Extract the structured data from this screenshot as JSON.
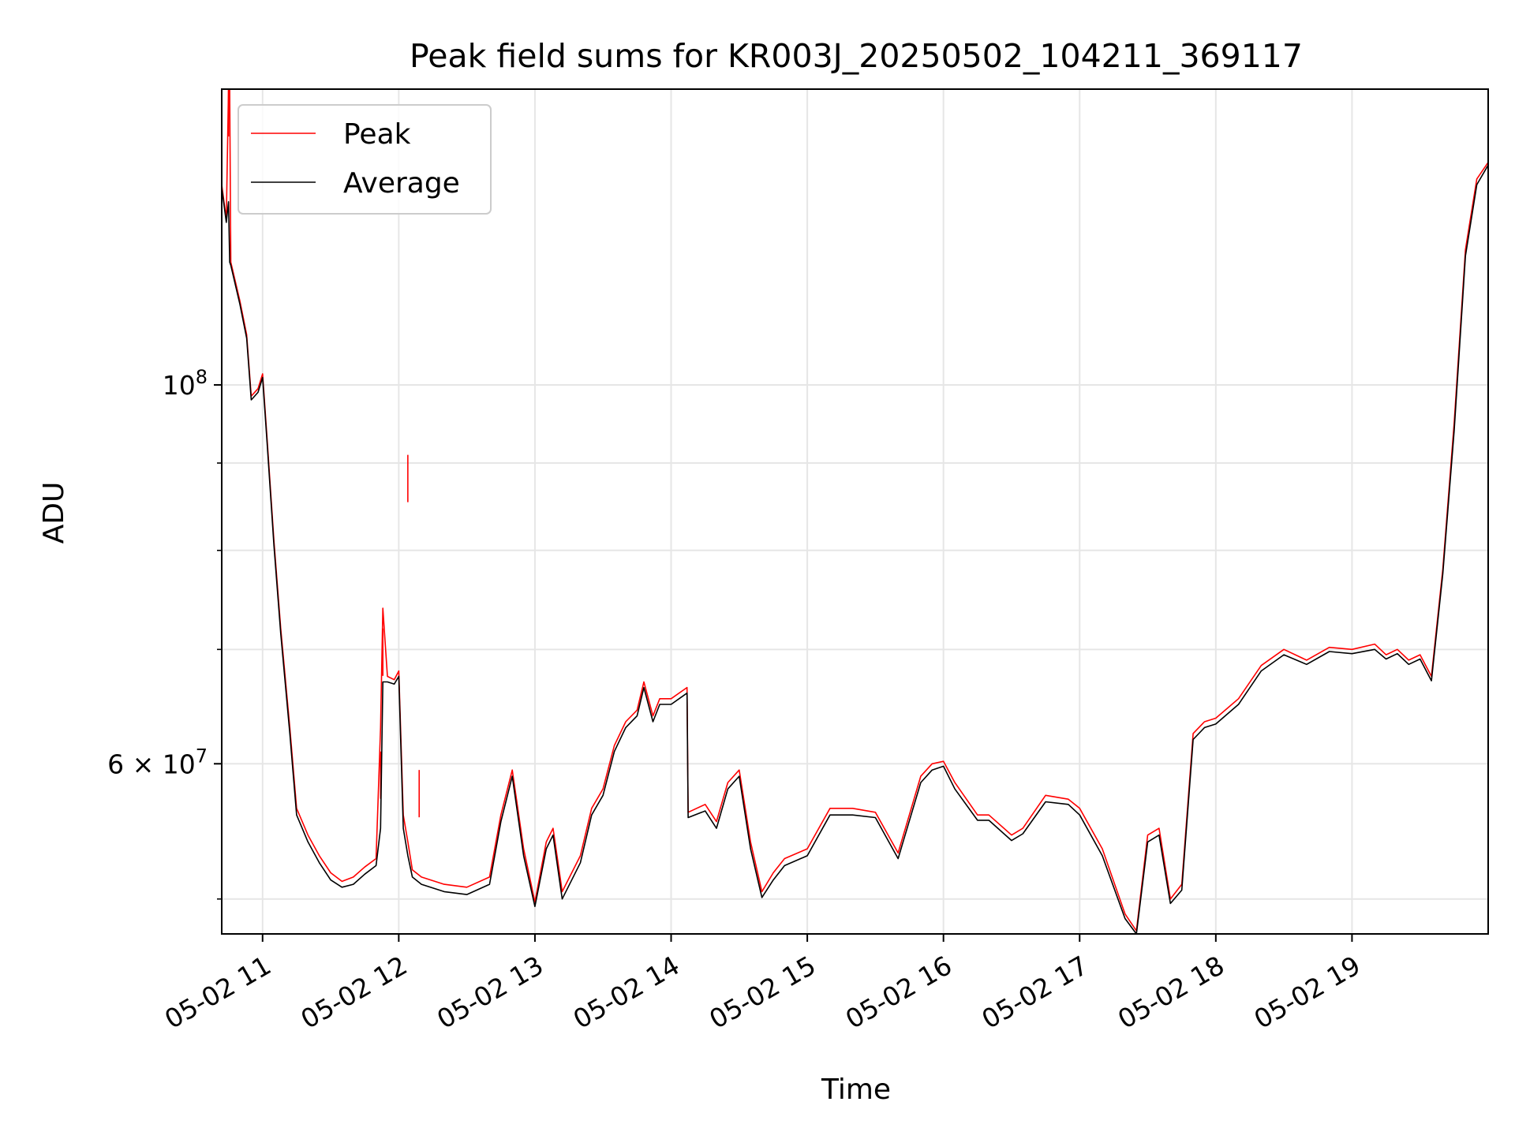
{
  "chart_data": {
    "type": "line",
    "title": "Peak field sums for KR003J_20250502_104211_369117",
    "xlabel": "Time",
    "ylabel": "ADU",
    "yscale": "log",
    "ylim": [
      47700000,
      149000000
    ],
    "xlim": [
      "2025-05-02 10:42",
      "2025-05-02 20:00"
    ],
    "x_ticks": [
      "05-02 11",
      "05-02 12",
      "05-02 13",
      "05-02 14",
      "05-02 15",
      "05-02 16",
      "05-02 17",
      "05-02 18",
      "05-02 19"
    ],
    "x_tick_times": [
      "2025-05-02 11:00",
      "2025-05-02 12:00",
      "2025-05-02 13:00",
      "2025-05-02 14:00",
      "2025-05-02 15:00",
      "2025-05-02 16:00",
      "2025-05-02 17:00",
      "2025-05-02 18:00",
      "2025-05-02 19:00"
    ],
    "y_major_ticks": [
      {
        "value": 100000000,
        "base": "10",
        "exp": "8"
      },
      {
        "value": 60000000,
        "mant": "6",
        "base": "10",
        "exp": "7"
      }
    ],
    "y_minor_ticks": [
      50000000,
      70000000,
      80000000,
      90000000
    ],
    "grid": true,
    "legend_position": "top-left",
    "series": [
      {
        "name": "Peak",
        "color": "#ff0000",
        "x": [
          "2025-05-02 10:42",
          "2025-05-02 10:44",
          "2025-05-02 10:45",
          "2025-05-02 10:45:30",
          "2025-05-02 10:46",
          "2025-05-02 10:50",
          "2025-05-02 10:53",
          "2025-05-02 10:55",
          "2025-05-02 10:58",
          "2025-05-02 11:00",
          "2025-05-02 11:02",
          "2025-05-02 11:05",
          "2025-05-02 11:08",
          "2025-05-02 11:12",
          "2025-05-02 11:15",
          "2025-05-02 11:20",
          "2025-05-02 11:25",
          "2025-05-02 11:30",
          "2025-05-02 11:35",
          "2025-05-02 11:40",
          "2025-05-02 11:45",
          "2025-05-02 11:50",
          "2025-05-02 11:52",
          "2025-05-02 11:53",
          "2025-05-02 11:55",
          "2025-05-02 11:58",
          "2025-05-02 12:00",
          "2025-05-02 12:02",
          "2025-05-02 12:04",
          "2025-05-02 12:06",
          "2025-05-02 12:10",
          "2025-05-02 12:20",
          "2025-05-02 12:30",
          "2025-05-02 12:40",
          "2025-05-02 12:45",
          "2025-05-02 12:50",
          "2025-05-02 12:55",
          "2025-05-02 13:00",
          "2025-05-02 13:05",
          "2025-05-02 13:08",
          "2025-05-02 13:12",
          "2025-05-02 13:20",
          "2025-05-02 13:25",
          "2025-05-02 13:30",
          "2025-05-02 13:35",
          "2025-05-02 13:40",
          "2025-05-02 13:45",
          "2025-05-02 13:48",
          "2025-05-02 13:52",
          "2025-05-02 13:55",
          "2025-05-02 14:00",
          "2025-05-02 14:07",
          "2025-05-02 14:07:30",
          "2025-05-02 14:15",
          "2025-05-02 14:20",
          "2025-05-02 14:25",
          "2025-05-02 14:30",
          "2025-05-02 14:35",
          "2025-05-02 14:40",
          "2025-05-02 14:45",
          "2025-05-02 14:50",
          "2025-05-02 15:00",
          "2025-05-02 15:10",
          "2025-05-02 15:20",
          "2025-05-02 15:30",
          "2025-05-02 15:40",
          "2025-05-02 15:50",
          "2025-05-02 15:55",
          "2025-05-02 16:00",
          "2025-05-02 16:05",
          "2025-05-02 16:15",
          "2025-05-02 16:20",
          "2025-05-02 16:30",
          "2025-05-02 16:35",
          "2025-05-02 16:45",
          "2025-05-02 16:55",
          "2025-05-02 17:00",
          "2025-05-02 17:10",
          "2025-05-02 17:20",
          "2025-05-02 17:25",
          "2025-05-02 17:30",
          "2025-05-02 17:35",
          "2025-05-02 17:40",
          "2025-05-02 17:45",
          "2025-05-02 17:50",
          "2025-05-02 17:55",
          "2025-05-02 18:00",
          "2025-05-02 18:10",
          "2025-05-02 18:20",
          "2025-05-02 18:30",
          "2025-05-02 18:40",
          "2025-05-02 18:50",
          "2025-05-02 19:00",
          "2025-05-02 19:10",
          "2025-05-02 19:15",
          "2025-05-02 19:20",
          "2025-05-02 19:25",
          "2025-05-02 19:30",
          "2025-05-02 19:33",
          "2025-05-02 19:35",
          "2025-05-02 19:40",
          "2025-05-02 19:45",
          "2025-05-02 19:50",
          "2025-05-02 19:55",
          "2025-05-02 20:00"
        ],
        "values": [
          131000000,
          125000000,
          149000000,
          149000000,
          118000000,
          112000000,
          107000000,
          98500000,
          99500000,
          101500000,
          93000000,
          81000000,
          72000000,
          63000000,
          56500000,
          54500000,
          53000000,
          51800000,
          51200000,
          51500000,
          52200000,
          52800000,
          63000000,
          74000000,
          67500000,
          67200000,
          68000000,
          56000000,
          54000000,
          52000000,
          51500000,
          51000000,
          50800000,
          51500000,
          56000000,
          59500000,
          53500000,
          49800000,
          54000000,
          55000000,
          50500000,
          53000000,
          56500000,
          58000000,
          61500000,
          63500000,
          64500000,
          67000000,
          64000000,
          65500000,
          65500000,
          66500000,
          56200000,
          56800000,
          55500000,
          58500000,
          59500000,
          54000000,
          50500000,
          51800000,
          52800000,
          53500000,
          56500000,
          56500000,
          56200000,
          53200000,
          59000000,
          60000000,
          60200000,
          58500000,
          56000000,
          56000000,
          54500000,
          55000000,
          57500000,
          57200000,
          56500000,
          53500000,
          49000000,
          47900000,
          54500000,
          55000000,
          50000000,
          51000000,
          62500000,
          63500000,
          63800000,
          65500000,
          68500000,
          70000000,
          69000000,
          70200000,
          70000000,
          70500000,
          69500000,
          70000000,
          69000000,
          69500000,
          68300000,
          67500000,
          78000000,
          95000000,
          120000000,
          132000000,
          135000000
        ],
        "spikes": [
          {
            "x": "2025-05-02 10:45",
            "y": 149000000
          },
          {
            "x": "2025-05-02 11:52",
            "y": 61000000
          },
          {
            "x": "2025-05-02 11:53",
            "y": 72000000
          },
          {
            "x": "2025-05-02 12:04",
            "y": 91000000
          },
          {
            "x": "2025-05-02 12:09",
            "y": 59500000
          }
        ]
      },
      {
        "name": "Average",
        "color": "#000000",
        "x": [
          "2025-05-02 10:42",
          "2025-05-02 10:44",
          "2025-05-02 10:45",
          "2025-05-02 10:45:30",
          "2025-05-02 10:46",
          "2025-05-02 10:50",
          "2025-05-02 10:53",
          "2025-05-02 10:55",
          "2025-05-02 10:58",
          "2025-05-02 11:00",
          "2025-05-02 11:02",
          "2025-05-02 11:05",
          "2025-05-02 11:08",
          "2025-05-02 11:12",
          "2025-05-02 11:15",
          "2025-05-02 11:20",
          "2025-05-02 11:25",
          "2025-05-02 11:30",
          "2025-05-02 11:35",
          "2025-05-02 11:40",
          "2025-05-02 11:45",
          "2025-05-02 11:50",
          "2025-05-02 11:52",
          "2025-05-02 11:53",
          "2025-05-02 11:55",
          "2025-05-02 11:58",
          "2025-05-02 12:00",
          "2025-05-02 12:02",
          "2025-05-02 12:04",
          "2025-05-02 12:06",
          "2025-05-02 12:10",
          "2025-05-02 12:20",
          "2025-05-02 12:30",
          "2025-05-02 12:40",
          "2025-05-02 12:45",
          "2025-05-02 12:50",
          "2025-05-02 12:55",
          "2025-05-02 13:00",
          "2025-05-02 13:05",
          "2025-05-02 13:08",
          "2025-05-02 13:12",
          "2025-05-02 13:20",
          "2025-05-02 13:25",
          "2025-05-02 13:30",
          "2025-05-02 13:35",
          "2025-05-02 13:40",
          "2025-05-02 13:45",
          "2025-05-02 13:48",
          "2025-05-02 13:52",
          "2025-05-02 13:55",
          "2025-05-02 14:00",
          "2025-05-02 14:07",
          "2025-05-02 14:07:30",
          "2025-05-02 14:15",
          "2025-05-02 14:20",
          "2025-05-02 14:25",
          "2025-05-02 14:30",
          "2025-05-02 14:35",
          "2025-05-02 14:40",
          "2025-05-02 14:45",
          "2025-05-02 14:50",
          "2025-05-02 15:00",
          "2025-05-02 15:10",
          "2025-05-02 15:20",
          "2025-05-02 15:30",
          "2025-05-02 15:40",
          "2025-05-02 15:50",
          "2025-05-02 15:55",
          "2025-05-02 16:00",
          "2025-05-02 16:05",
          "2025-05-02 16:15",
          "2025-05-02 16:20",
          "2025-05-02 16:30",
          "2025-05-02 16:35",
          "2025-05-02 16:45",
          "2025-05-02 16:55",
          "2025-05-02 17:00",
          "2025-05-02 17:10",
          "2025-05-02 17:20",
          "2025-05-02 17:25",
          "2025-05-02 17:30",
          "2025-05-02 17:35",
          "2025-05-02 17:40",
          "2025-05-02 17:45",
          "2025-05-02 17:50",
          "2025-05-02 17:55",
          "2025-05-02 18:00",
          "2025-05-02 18:10",
          "2025-05-02 18:20",
          "2025-05-02 18:30",
          "2025-05-02 18:40",
          "2025-05-02 18:50",
          "2025-05-02 19:00",
          "2025-05-02 19:10",
          "2025-05-02 19:15",
          "2025-05-02 19:20",
          "2025-05-02 19:25",
          "2025-05-02 19:30",
          "2025-05-02 19:33",
          "2025-05-02 19:35",
          "2025-05-02 19:40",
          "2025-05-02 19:45",
          "2025-05-02 19:50",
          "2025-05-02 19:55",
          "2025-05-02 20:00"
        ],
        "values": [
          130500000,
          124500000,
          128000000,
          118000000,
          117500000,
          111500000,
          106500000,
          98000000,
          99000000,
          101000000,
          92500000,
          80500000,
          71500000,
          62500000,
          56000000,
          54000000,
          52500000,
          51300000,
          50800000,
          51000000,
          51700000,
          52300000,
          55000000,
          67000000,
          67000000,
          66800000,
          67500000,
          55000000,
          53000000,
          51500000,
          51000000,
          50500000,
          50300000,
          51000000,
          55500000,
          59000000,
          53000000,
          49500000,
          53500000,
          54500000,
          50000000,
          52500000,
          56000000,
          57500000,
          61000000,
          63000000,
          64000000,
          66500000,
          63500000,
          65000000,
          65000000,
          66000000,
          55800000,
          56300000,
          55000000,
          58000000,
          59000000,
          53500000,
          50100000,
          51300000,
          52300000,
          53000000,
          56000000,
          56000000,
          55800000,
          52800000,
          58500000,
          59500000,
          59800000,
          58000000,
          55600000,
          55600000,
          54100000,
          54600000,
          57000000,
          56800000,
          56000000,
          53000000,
          48700000,
          47700000,
          54000000,
          54500000,
          49700000,
          50600000,
          62000000,
          63000000,
          63300000,
          65000000,
          68000000,
          69500000,
          68600000,
          69800000,
          69600000,
          70000000,
          69100000,
          69600000,
          68600000,
          69100000,
          67900000,
          67100000,
          77500000,
          94000000,
          119000000,
          131000000,
          134500000
        ]
      }
    ]
  }
}
